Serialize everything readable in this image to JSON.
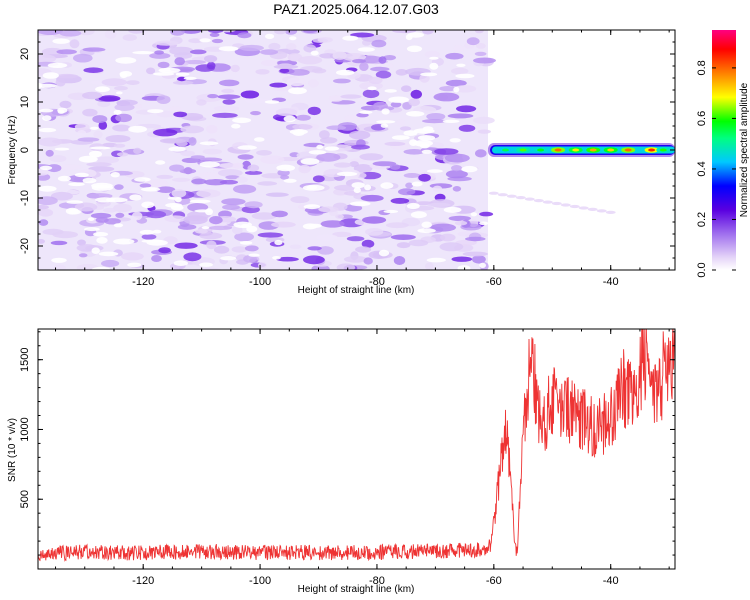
{
  "figure": {
    "title": "PAZ1.2025.064.12.07.G03"
  },
  "chart_data": [
    {
      "id": "spectrogram",
      "type": "heatmap",
      "title": "PAZ1.2025.064.12.07.G03",
      "xlabel": "Height of straight line (km)",
      "ylabel": "Frequency (Hz)",
      "xlim": [
        -138,
        -29
      ],
      "ylim": [
        -25,
        25
      ],
      "x_ticks": [
        -120,
        -100,
        -80,
        -60,
        -40
      ],
      "y_ticks": [
        -20,
        -10,
        0,
        10,
        20
      ],
      "colorbar": {
        "label": "Normalized spectral amplitude",
        "range": [
          0,
          0.95
        ],
        "ticks": [
          0.0,
          0.2,
          0.4,
          0.6,
          0.8
        ],
        "colormap": "rainbow (white-purple-blue-cyan-green-yellow-red-magenta)"
      },
      "noise_region": {
        "x_range": [
          -138,
          -61
        ],
        "y_range": [
          -25,
          25
        ],
        "amplitude": "0.02-0.15"
      },
      "signal_band": {
        "x_range": [
          -61,
          -29
        ],
        "frequency_hz": 0,
        "peak_amplitude": 0.85
      },
      "weak_tail": {
        "x_range": [
          -60,
          -40
        ],
        "frequency_hz_range": [
          -9,
          -13
        ]
      }
    },
    {
      "id": "snr",
      "type": "line",
      "xlabel": "Height of straight line (km)",
      "ylabel": "SNR (10 * v/v)",
      "xlim": [
        -138,
        -29
      ],
      "ylim": [
        0,
        1720
      ],
      "x_ticks": [
        -120,
        -100,
        -80,
        -60,
        -40
      ],
      "y_ticks": [
        500,
        1000,
        1500
      ],
      "color": "#ee3333",
      "series": [
        {
          "x": [
            -138,
            -130,
            -120,
            -110,
            -100,
            -90,
            -80,
            -70,
            -65,
            -62,
            -60.5,
            -59.5,
            -58,
            -57,
            -56.5,
            -56,
            -55,
            -54,
            -53.5,
            -52,
            -50,
            -48,
            -46,
            -44,
            -42,
            -40,
            -38,
            -36,
            -35,
            -34,
            -33,
            -32,
            -31,
            -30,
            -29
          ],
          "y": [
            110,
            120,
            115,
            125,
            120,
            118,
            120,
            125,
            135,
            140,
            180,
            500,
            1050,
            600,
            180,
            120,
            950,
            1350,
            1550,
            1000,
            1200,
            1150,
            1100,
            1050,
            1000,
            1100,
            1300,
            1250,
            1400,
            1550,
            1300,
            1200,
            1400,
            1500,
            1600
          ]
        }
      ]
    }
  ]
}
